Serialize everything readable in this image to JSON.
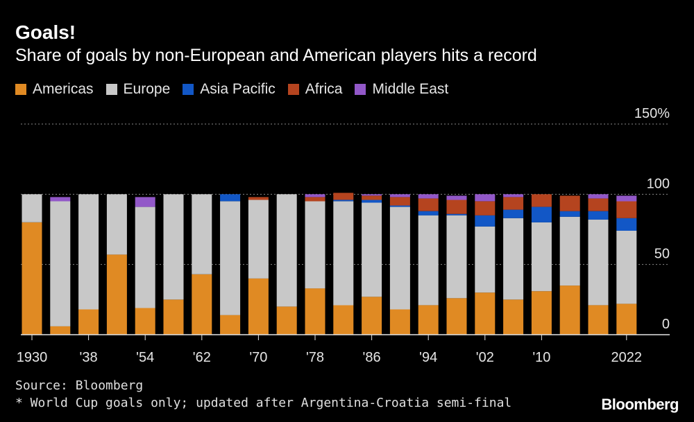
{
  "header": {
    "title": "Goals!",
    "subtitle": "Share of goals by non-European and American players hits a record"
  },
  "legend": [
    {
      "label": "Americas",
      "color": "#e08a23"
    },
    {
      "label": "Europe",
      "color": "#c8c8c8"
    },
    {
      "label": "Asia Pacific",
      "color": "#1257c6"
    },
    {
      "label": "Africa",
      "color": "#b5441f"
    },
    {
      "label": "Middle East",
      "color": "#9258c8"
    }
  ],
  "chart_data": {
    "type": "bar",
    "stacked": true,
    "title": "Goals!",
    "subtitle": "Share of goals by non-European and American players hits a record",
    "ylim": [
      0,
      150
    ],
    "y_unit": "%",
    "y_ticks": [
      "150%",
      "100",
      "50",
      "0"
    ],
    "x_tick_labels": [
      "1930",
      "'38",
      "'54",
      "'62",
      "'70",
      "'78",
      "'86",
      "'94",
      "'02",
      "'10",
      "2022"
    ],
    "categories": [
      "1930",
      "1934",
      "1938",
      "1950",
      "1954",
      "1958",
      "1962",
      "1966",
      "1970",
      "1974",
      "1978",
      "1982",
      "1986",
      "1990",
      "1994",
      "1998",
      "2002",
      "2006",
      "2010",
      "2014",
      "2018",
      "2022"
    ],
    "series": [
      {
        "name": "Americas",
        "values": [
          80,
          6,
          18,
          57,
          19,
          25,
          43,
          14,
          40,
          20,
          33,
          21,
          27,
          18,
          21,
          26,
          30,
          25,
          31,
          35,
          21,
          22
        ]
      },
      {
        "name": "Europe",
        "values": [
          20,
          89,
          82,
          43,
          72,
          75,
          57,
          81,
          56,
          80,
          62,
          74,
          67,
          73,
          64,
          59,
          47,
          58,
          49,
          49,
          61,
          52
        ]
      },
      {
        "name": "Asia Pacific",
        "values": [
          0,
          0,
          0,
          0,
          0,
          0,
          0,
          5,
          0,
          0,
          0,
          1,
          2,
          1,
          3,
          1,
          8,
          6,
          11,
          4,
          6,
          9
        ]
      },
      {
        "name": "Africa",
        "values": [
          0,
          0,
          0,
          0,
          0,
          0,
          0,
          0,
          2,
          0,
          3,
          5,
          3,
          6,
          9,
          10,
          10,
          9,
          9,
          11,
          9,
          12
        ]
      },
      {
        "name": "Middle East",
        "values": [
          0,
          3,
          0,
          0,
          7,
          0,
          0,
          0,
          0,
          0,
          2,
          0,
          1,
          2,
          3,
          3,
          5,
          2,
          0,
          0,
          3,
          4
        ]
      }
    ]
  },
  "footer": {
    "source": "Source: Bloomberg",
    "note": "* World Cup goals only; updated after Argentina-Croatia semi-final",
    "brand": "Bloomberg"
  }
}
